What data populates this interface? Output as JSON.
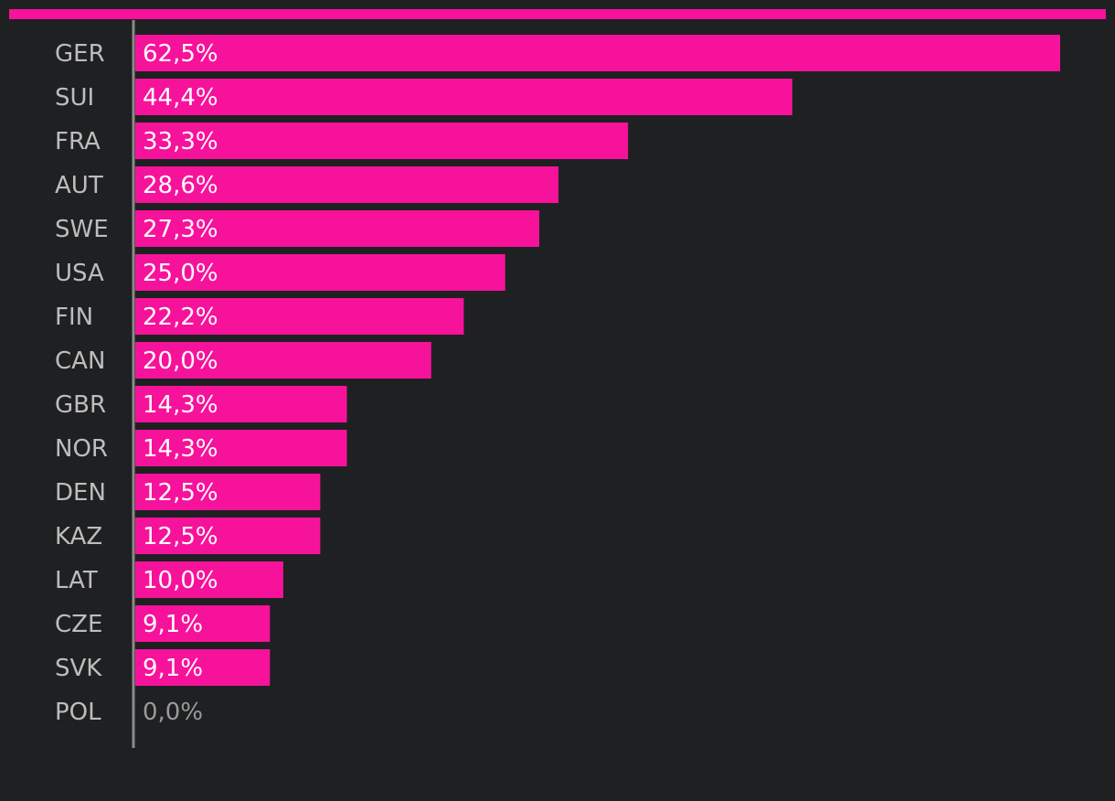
{
  "chart_data": {
    "type": "bar",
    "orientation": "horizontal",
    "title": "",
    "xlabel": "",
    "ylabel": "",
    "xlim": [
      0,
      65
    ],
    "grid": false,
    "legend": "none",
    "categories": [
      "GER",
      "SUI",
      "FRA",
      "AUT",
      "SWE",
      "USA",
      "FIN",
      "CAN",
      "GBR",
      "NOR",
      "DEN",
      "KAZ",
      "LAT",
      "CZE",
      "SVK",
      "POL"
    ],
    "values": [
      62.5,
      44.4,
      33.3,
      28.6,
      27.3,
      25.0,
      22.2,
      20.0,
      14.3,
      14.3,
      12.5,
      12.5,
      10.0,
      9.1,
      9.1,
      0.0
    ],
    "value_labels": [
      "62,5%",
      "44,4%",
      "33,3%",
      "28,6%",
      "27,3%",
      "25,0%",
      "22,2%",
      "20,0%",
      "14,3%",
      "14,3%",
      "12,5%",
      "12,5%",
      "10,0%",
      "9,1%",
      "9,1%",
      "0,0%"
    ],
    "colors": {
      "bar": "#f7129b",
      "accent_line": "#f7129b",
      "axis": "#8a8a8a",
      "category_text": "#bdbdbd",
      "value_text": "#ffffff",
      "zero_value_text": "#9a9a9a",
      "background": "#1f2022"
    }
  }
}
